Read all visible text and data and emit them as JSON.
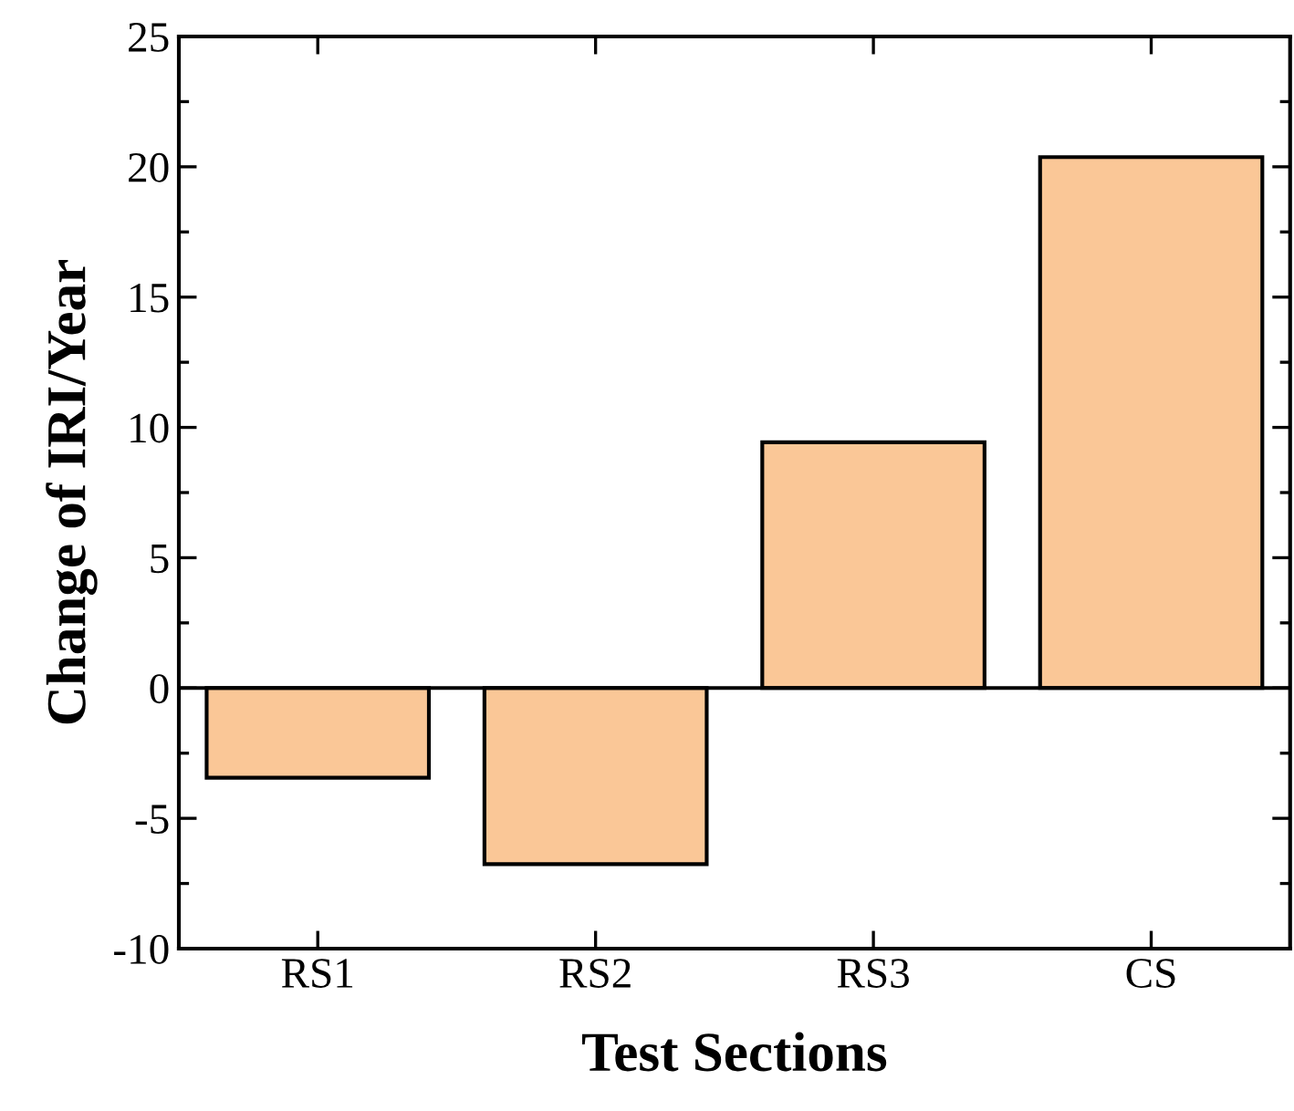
{
  "chart_data": {
    "type": "bar",
    "xlabel": "Test Sections",
    "ylabel": "Change of IRI/Year",
    "categories": [
      "RS1",
      "RS2",
      "RS3",
      "CS"
    ],
    "values": [
      -3.44,
      -6.76,
      9.43,
      20.37
    ],
    "color": "#fac797",
    "ylim": [
      -10,
      25
    ],
    "yticks": [
      -10,
      -5,
      0,
      5,
      10,
      15,
      20,
      25
    ],
    "legend": false
  }
}
